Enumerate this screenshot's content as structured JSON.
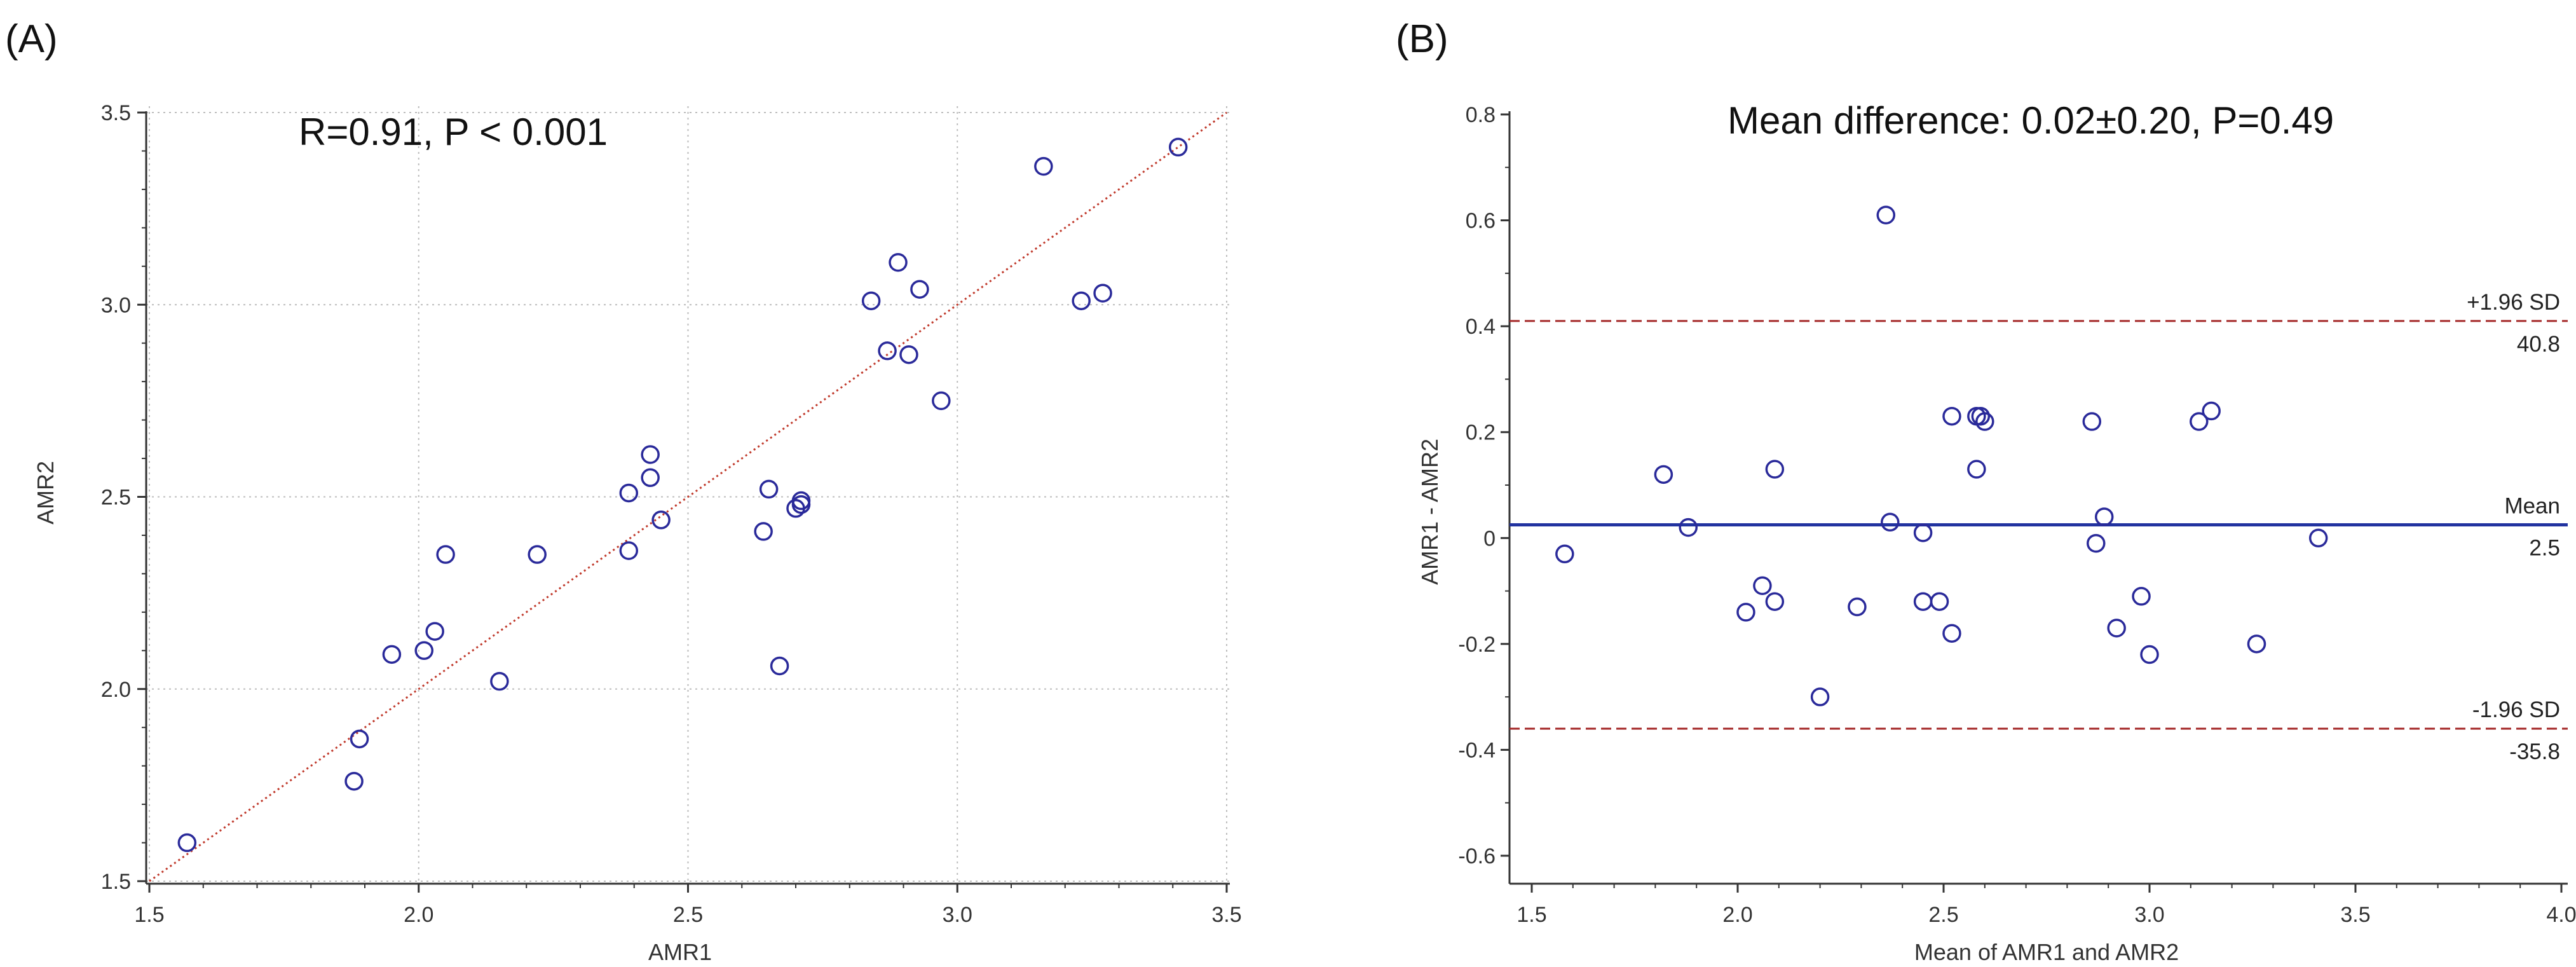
{
  "chart_data": [
    {
      "type": "scatter",
      "panel_label": "(A)",
      "annotation": "R=0.91, P < 0.001",
      "xlabel": "AMR1",
      "ylabel": "AMR2",
      "xlim": [
        1.5,
        3.5
      ],
      "ylim": [
        1.5,
        3.5
      ],
      "xticks": [
        "1.5",
        "2.0",
        "2.5",
        "3.0",
        "3.5"
      ],
      "yticks": [
        "1.5",
        "2.0",
        "2.5",
        "3.0",
        "3.5"
      ],
      "grid": true,
      "reference_line": {
        "style": "dotted",
        "color": "#c0392b",
        "from": [
          1.5,
          1.5
        ],
        "to": [
          3.5,
          3.5
        ]
      },
      "marker_color": "#2a2a9a",
      "points": [
        [
          1.57,
          1.6
        ],
        [
          1.88,
          1.76
        ],
        [
          1.89,
          1.87
        ],
        [
          1.95,
          2.09
        ],
        [
          2.01,
          2.1
        ],
        [
          2.03,
          2.15
        ],
        [
          2.05,
          2.35
        ],
        [
          2.15,
          2.02
        ],
        [
          2.22,
          2.35
        ],
        [
          2.39,
          2.36
        ],
        [
          2.39,
          2.51
        ],
        [
          2.43,
          2.55
        ],
        [
          2.43,
          2.61
        ],
        [
          2.45,
          2.44
        ],
        [
          2.64,
          2.41
        ],
        [
          2.65,
          2.52
        ],
        [
          2.67,
          2.06
        ],
        [
          2.7,
          2.47
        ],
        [
          2.71,
          2.48
        ],
        [
          2.71,
          2.49
        ],
        [
          2.84,
          3.01
        ],
        [
          2.87,
          2.88
        ],
        [
          2.89,
          3.11
        ],
        [
          2.91,
          2.87
        ],
        [
          2.93,
          3.04
        ],
        [
          2.97,
          2.75
        ],
        [
          3.16,
          3.36
        ],
        [
          3.23,
          3.01
        ],
        [
          3.27,
          3.03
        ],
        [
          3.41,
          3.41
        ]
      ]
    },
    {
      "type": "scatter",
      "panel_label": "(B)",
      "annotation": "Mean difference: 0.02±0.20, P=0.49",
      "xlabel": "Mean of AMR1 and AMR2",
      "ylabel": "AMR1 - AMR2",
      "xlim": [
        1.5,
        4.0
      ],
      "ylim": [
        -0.65,
        0.85
      ],
      "xticks": [
        "1.5",
        "2.0",
        "2.5",
        "3.0",
        "3.5",
        "4.0"
      ],
      "yticks": [
        "-0.6",
        "-0.4",
        "-0.2",
        "0",
        "0.2",
        "0.4",
        "0.6",
        "0.8"
      ],
      "ytick_values": [
        -0.6,
        -0.4,
        -0.2,
        0,
        0.2,
        0.4,
        0.6,
        0.8
      ],
      "grid": false,
      "marker_color": "#2a2a9a",
      "reference_lines": [
        {
          "name": "upper-loa",
          "value": 0.41,
          "style": "dashed",
          "color": "#a52a2a",
          "label_above": "+1.96 SD",
          "label_below": "40.8"
        },
        {
          "name": "mean-line",
          "value": 0.025,
          "style": "solid",
          "color": "#2233a0",
          "label_above": "Mean",
          "label_below": "2.5"
        },
        {
          "name": "lower-loa",
          "value": -0.36,
          "style": "dashed",
          "color": "#a52a2a",
          "label_above": "-1.96 SD",
          "label_below": "-35.8"
        }
      ],
      "points": [
        [
          1.58,
          -0.03
        ],
        [
          1.82,
          0.12
        ],
        [
          1.88,
          0.02
        ],
        [
          2.02,
          -0.14
        ],
        [
          2.06,
          -0.09
        ],
        [
          2.09,
          0.13
        ],
        [
          2.09,
          -0.12
        ],
        [
          2.2,
          -0.3
        ],
        [
          2.29,
          -0.13
        ],
        [
          2.36,
          0.61
        ],
        [
          2.37,
          0.03
        ],
        [
          2.45,
          0.01
        ],
        [
          2.45,
          -0.12
        ],
        [
          2.49,
          -0.12
        ],
        [
          2.52,
          0.23
        ],
        [
          2.52,
          -0.18
        ],
        [
          2.58,
          0.23
        ],
        [
          2.58,
          0.13
        ],
        [
          2.59,
          0.23
        ],
        [
          2.6,
          0.22
        ],
        [
          2.86,
          0.22
        ],
        [
          2.87,
          -0.01
        ],
        [
          2.89,
          0.04
        ],
        [
          2.92,
          -0.17
        ],
        [
          2.98,
          -0.11
        ],
        [
          3.0,
          -0.22
        ],
        [
          3.12,
          0.22
        ],
        [
          3.15,
          0.24
        ],
        [
          3.26,
          -0.2
        ],
        [
          3.41,
          0.0
        ]
      ]
    }
  ]
}
